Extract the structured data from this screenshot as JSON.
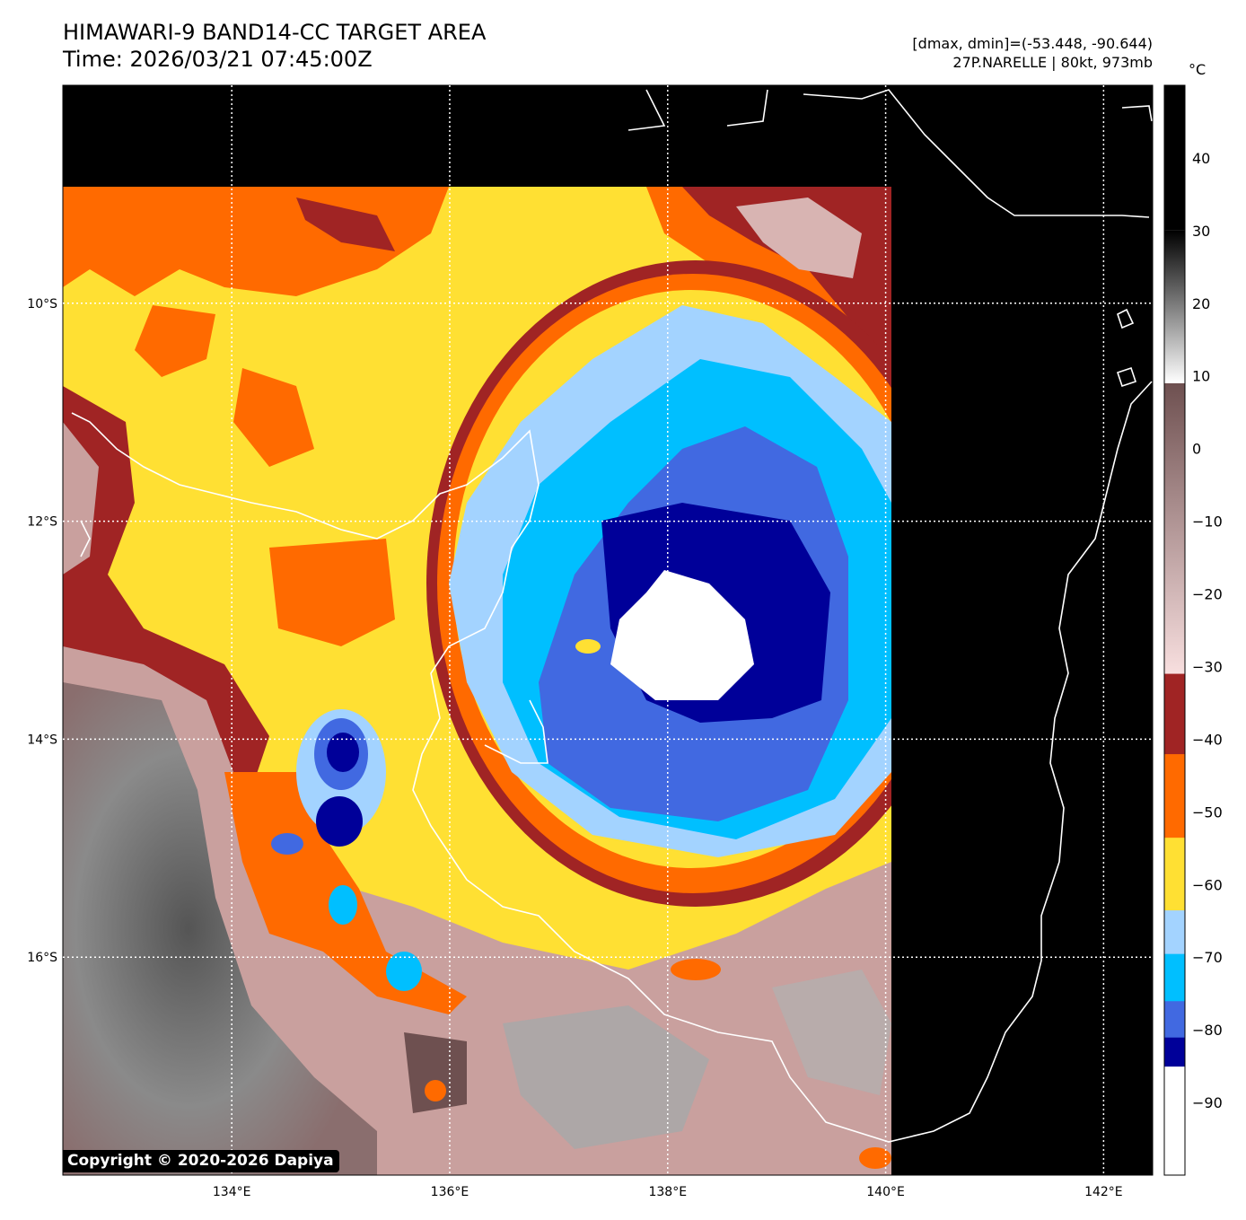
{
  "header": {
    "title_line1": "HIMAWARI-9 BAND14-CC TARGET AREA",
    "title_line2": "Time: 2026/03/21 07:45:00Z",
    "range_text": "[dmax, dmin]=(-53.448, -90.644)",
    "storm_text": "27P.NARELLE | 80kt, 973mb"
  },
  "map": {
    "lon_range": [
      132.45,
      142.45
    ],
    "lat_range": [
      -8.0,
      -18.0
    ],
    "lon_ticks": [
      {
        "value": 134,
        "label": "134°E"
      },
      {
        "value": 136,
        "label": "136°E"
      },
      {
        "value": 138,
        "label": "138°E"
      },
      {
        "value": 140,
        "label": "140°E"
      },
      {
        "value": 142,
        "label": "142°E"
      }
    ],
    "lat_ticks": [
      {
        "value": -10,
        "label": "10°S"
      },
      {
        "value": -12,
        "label": "12°S"
      },
      {
        "value": -14,
        "label": "14°S"
      },
      {
        "value": -16,
        "label": "16°S"
      }
    ],
    "copyright": "Copyright © 2020-2026 Dapiya"
  },
  "colorbar": {
    "unit": "°C",
    "range": [
      -100,
      50
    ],
    "ticks": [
      "40",
      "30",
      "20",
      "10",
      "0",
      "−10",
      "−20",
      "−30",
      "−40",
      "−50",
      "−60",
      "−70",
      "−80",
      "−90"
    ],
    "tick_values": [
      40,
      30,
      20,
      10,
      0,
      -10,
      -20,
      -30,
      -40,
      -50,
      -60,
      -70,
      -80,
      -90
    ],
    "segments": [
      {
        "from": -100,
        "to": -85,
        "color": "#ffffff"
      },
      {
        "from": -85,
        "to": -81,
        "color": "#000099"
      },
      {
        "from": -81,
        "to": -76,
        "color": "#4169e1"
      },
      {
        "from": -76,
        "to": -69.5,
        "color": "#00bfff"
      },
      {
        "from": -69.5,
        "to": -63.5,
        "color": "#a3d3ff"
      },
      {
        "from": -63.5,
        "to": -53.5,
        "color": "#ffe033"
      },
      {
        "from": -53.5,
        "to": -42,
        "color": "#ff6a00"
      },
      {
        "from": -42,
        "to": -31,
        "color": "#a02424"
      }
    ],
    "gradients": [
      {
        "from": -31,
        "to": 9,
        "color_low": "#f8dfdf",
        "color_high": "#6e5050"
      },
      {
        "from": 9,
        "to": 30,
        "color_low": "#ffffff",
        "color_high": "#000000"
      },
      {
        "from": 30,
        "to": 50,
        "color_low": "#000000",
        "color_high": "#000000"
      }
    ]
  }
}
